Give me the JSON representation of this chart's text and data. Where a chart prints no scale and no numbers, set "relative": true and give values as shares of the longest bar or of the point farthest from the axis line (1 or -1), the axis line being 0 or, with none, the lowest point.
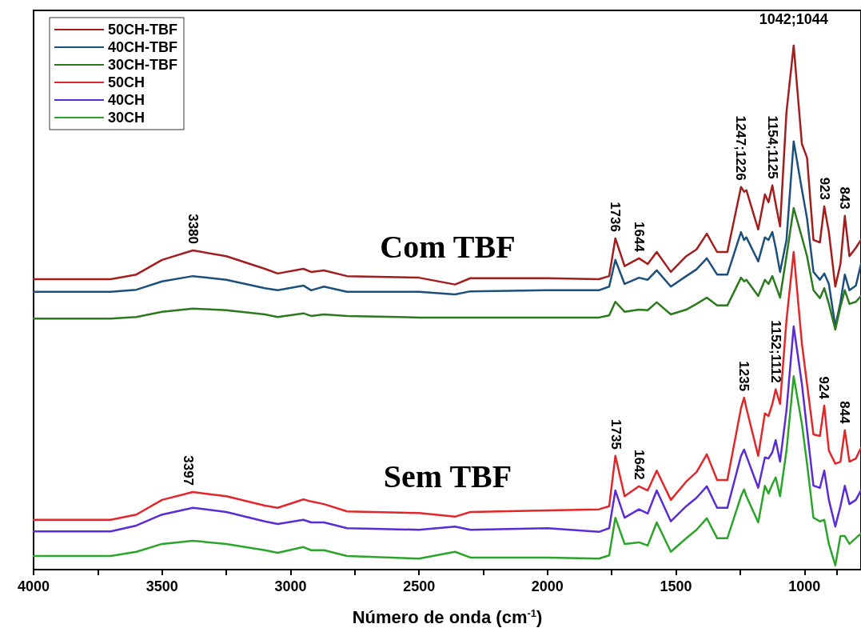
{
  "chart_data": {
    "type": "line",
    "relative": true,
    "xlabel": "Número de onda (cm$^{-1}$)",
    "xlim": [
      4000,
      780
    ],
    "xticks": [
      4000,
      {
        "value": 3750,
        "label": null
      },
      3500,
      {
        "value": 3250,
        "label": null
      },
      3000,
      {
        "value": 2750,
        "label": null
      },
      2500,
      {
        "value": 2250,
        "label": null
      },
      2000,
      {
        "value": 1750,
        "label": null
      },
      1500,
      {
        "value": 1250,
        "label": null
      },
      1000,
      {
        "value": 875,
        "label": null
      }
    ],
    "grid": false,
    "legend": "top left",
    "marker": "none",
    "line_style": "solid",
    "x": [
      4000,
      3700,
      3600,
      3500,
      3380,
      3250,
      3100,
      3050,
      2950,
      2920,
      2870,
      2780,
      2500,
      2360,
      2300,
      2000,
      1800,
      1760,
      1736,
      1700,
      1644,
      1610,
      1575,
      1520,
      1460,
      1420,
      1380,
      1340,
      1300,
      1247,
      1235,
      1226,
      1180,
      1154,
      1140,
      1125,
      1112,
      1095,
      1070,
      1042,
      1010,
      990,
      965,
      940,
      923,
      905,
      880,
      860,
      843,
      825,
      800,
      780
    ],
    "series": [
      {
        "name": "50CH-TBF",
        "color": "#a31d1d",
        "values": [
          0.554,
          0.554,
          0.563,
          0.591,
          0.609,
          0.598,
          0.574,
          0.565,
          0.574,
          0.568,
          0.571,
          0.56,
          0.557,
          0.544,
          0.556,
          0.556,
          0.554,
          0.56,
          0.632,
          0.579,
          0.594,
          0.583,
          0.606,
          0.568,
          0.598,
          0.611,
          0.641,
          0.606,
          0.606,
          0.73,
          0.721,
          0.724,
          0.649,
          0.716,
          0.701,
          0.733,
          0.698,
          0.655,
          0.873,
          1,
          0.812,
          0.786,
          0.629,
          0.624,
          0.693,
          0.644,
          0.54,
          0.583,
          0.675,
          0.598,
          0.614,
          0.629
        ]
      },
      {
        "name": "40CH-TBF",
        "color": "#1d4f7c",
        "values": [
          0.53,
          0.53,
          0.534,
          0.55,
          0.56,
          0.553,
          0.537,
          0.533,
          0.542,
          0.533,
          0.54,
          0.53,
          0.53,
          0.525,
          0.531,
          0.533,
          0.533,
          0.54,
          0.591,
          0.545,
          0.557,
          0.553,
          0.571,
          0.54,
          0.56,
          0.573,
          0.594,
          0.563,
          0.563,
          0.644,
          0.629,
          0.634,
          0.588,
          0.634,
          0.629,
          0.644,
          0.614,
          0.568,
          0.629,
          0.817,
          0.725,
          0.67,
          0.568,
          0.553,
          0.565,
          0.545,
          0.464,
          0.51,
          0.563,
          0.533,
          0.542,
          0.583
        ]
      },
      {
        "name": "30CH-TBF",
        "color": "#2b7a1d",
        "values": [
          0.479,
          0.479,
          0.482,
          0.492,
          0.498,
          0.495,
          0.487,
          0.482,
          0.489,
          0.484,
          0.487,
          0.484,
          0.481,
          0.481,
          0.481,
          0.481,
          0.481,
          0.485,
          0.511,
          0.492,
          0.496,
          0.495,
          0.51,
          0.487,
          0.496,
          0.507,
          0.519,
          0.504,
          0.504,
          0.557,
          0.55,
          0.553,
          0.522,
          0.553,
          0.545,
          0.56,
          0.542,
          0.519,
          0.598,
          0.69,
          0.634,
          0.598,
          0.533,
          0.518,
          0.537,
          0.507,
          0.458,
          0.502,
          0.533,
          0.507,
          0.511,
          0.522
        ]
      },
      {
        "name": "50CH",
        "color": "#e3262a",
        "values": [
          0.095,
          0.095,
          0.105,
          0.133,
          0.148,
          0.14,
          0.122,
          0.118,
          0.134,
          0.13,
          0.125,
          0.111,
          0.108,
          0.101,
          0.11,
          0.113,
          0.115,
          0.121,
          0.217,
          0.14,
          0.159,
          0.151,
          0.189,
          0.133,
          0.168,
          0.186,
          0.22,
          0.171,
          0.171,
          0.308,
          0.328,
          0.308,
          0.217,
          0.298,
          0.293,
          0.316,
          0.344,
          0.316,
          0.476,
          0.606,
          0.431,
          0.354,
          0.258,
          0.255,
          0.313,
          0.227,
          0.202,
          0.206,
          0.266,
          0.206,
          0.212,
          0.232
        ]
      },
      {
        "name": "40CH",
        "color": "#5b2bd8",
        "values": [
          0.073,
          0.073,
          0.084,
          0.105,
          0.118,
          0.11,
          0.092,
          0.087,
          0.095,
          0.09,
          0.09,
          0.079,
          0.076,
          0.082,
          0.076,
          0.079,
          0.072,
          0.079,
          0.151,
          0.099,
          0.115,
          0.107,
          0.151,
          0.092,
          0.121,
          0.137,
          0.159,
          0.118,
          0.118,
          0.217,
          0.229,
          0.217,
          0.156,
          0.214,
          0.212,
          0.224,
          0.247,
          0.206,
          0.304,
          0.464,
          0.354,
          0.267,
          0.16,
          0.156,
          0.189,
          0.133,
          0.082,
          0.121,
          0.16,
          0.125,
          0.133,
          0.151
        ]
      },
      {
        "name": "30CH",
        "color": "#2aa52a",
        "values": [
          0.026,
          0.026,
          0.034,
          0.049,
          0.055,
          0.049,
          0.037,
          0.032,
          0.043,
          0.037,
          0.037,
          0.026,
          0.021,
          0.034,
          0.023,
          0.023,
          0.021,
          0.027,
          0.099,
          0.049,
          0.052,
          0.046,
          0.09,
          0.034,
          0.06,
          0.076,
          0.098,
          0.06,
          0.06,
          0.14,
          0.153,
          0.14,
          0.09,
          0.16,
          0.145,
          0.163,
          0.176,
          0.14,
          0.227,
          0.369,
          0.278,
          0.202,
          0.099,
          0.092,
          0.095,
          0.049,
          0.008,
          0.064,
          0.064,
          0.049,
          0.06,
          0.069
        ]
      }
    ],
    "annotations": [
      {
        "text": "1042;1044",
        "x": 1042,
        "y": 1
      },
      {
        "text": "3380",
        "x": 3380,
        "y": 0.609
      },
      {
        "text": "1736",
        "x": 1736,
        "y": 0.632
      },
      {
        "text": "1644",
        "x": 1644,
        "y": 0.594
      },
      {
        "text": "1247;1226",
        "x": 1247,
        "y": 0.73
      },
      {
        "text": "1154;1125",
        "x": 1125,
        "y": 0.733
      },
      {
        "text": "923",
        "x": 923,
        "y": 0.693
      },
      {
        "text": "843",
        "x": 843,
        "y": 0.675
      },
      {
        "text": "3397",
        "x": 3397,
        "y": 0.148
      },
      {
        "text": "1735",
        "x": 1735,
        "y": 0.217
      },
      {
        "text": "1642",
        "x": 1642,
        "y": 0.159
      },
      {
        "text": "1235",
        "x": 1235,
        "y": 0.328
      },
      {
        "text": "1152;1112",
        "x": 1112,
        "y": 0.344
      },
      {
        "text": "924",
        "x": 924,
        "y": 0.313
      },
      {
        "text": "844",
        "x": 844,
        "y": 0.266
      },
      "Com TBF",
      "Sem TBF"
    ]
  }
}
